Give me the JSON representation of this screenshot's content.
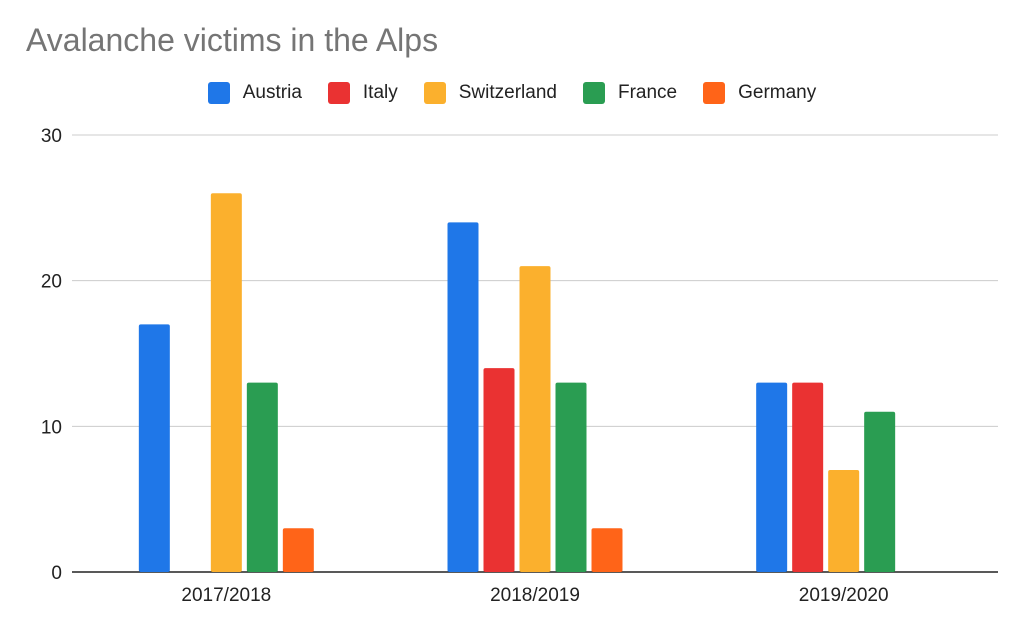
{
  "chart_data": {
    "type": "bar",
    "title": "Avalanche victims in the Alps",
    "xlabel": "",
    "ylabel": "",
    "categories": [
      "2017/2018",
      "2018/2019",
      "2019/2020"
    ],
    "series": [
      {
        "name": "Austria",
        "color": "#1f77e8",
        "values": [
          17,
          24,
          13
        ]
      },
      {
        "name": "Italy",
        "color": "#ea3232",
        "values": [
          null,
          14,
          13
        ]
      },
      {
        "name": "Switzerland",
        "color": "#fbb02d",
        "values": [
          26,
          21,
          7
        ]
      },
      {
        "name": "France",
        "color": "#2a9d52",
        "values": [
          13,
          13,
          11
        ]
      },
      {
        "name": "Germany",
        "color": "#ff6418",
        "values": [
          3,
          3,
          null
        ]
      }
    ],
    "ylim": [
      0,
      30
    ],
    "yticks": [
      0,
      10,
      20,
      30
    ],
    "grid": true,
    "legend_position": "top-center"
  }
}
